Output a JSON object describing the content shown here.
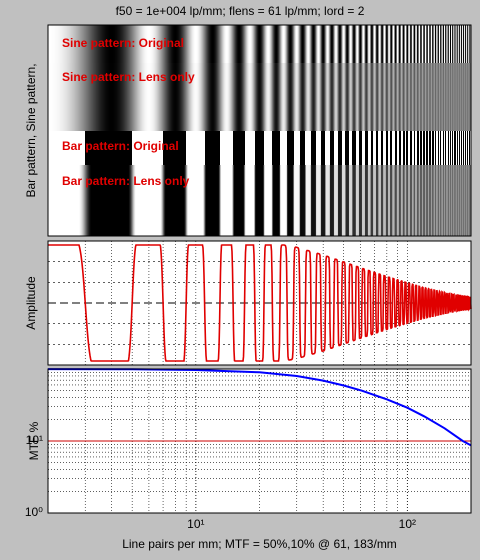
{
  "title": "f50 = 1e+004 lp/mm; flens = 61 lp/mm; lord = 2",
  "chart_data": [
    {
      "type": "pattern",
      "ylabel": "Bar pattern, Sine pattern,",
      "labels": [
        "Sine pattern: Original",
        "Sine pattern: Lens only",
        "Bar pattern: Original",
        "Bar pattern: Lens only"
      ]
    },
    {
      "type": "waveform",
      "ylabel": "Amplitude",
      "grid": true
    },
    {
      "type": "line",
      "ylabel": "MTF %",
      "xlabel": "Line pairs per mm;  MTF = 50%,10% @ 61, 183/mm",
      "log_x": true,
      "log_y": true,
      "grid": true,
      "xlim": [
        2,
        200
      ],
      "ylim": [
        1,
        100
      ],
      "xticks": [
        {
          "value": 10,
          "label": "10¹"
        },
        {
          "value": 100,
          "label": "10²"
        }
      ],
      "yticks": [
        {
          "value": 1,
          "label": "10⁰"
        },
        {
          "value": 10,
          "label": "10¹"
        }
      ],
      "hline": {
        "value": 10,
        "color": "#cc0000"
      },
      "series": [
        {
          "color": "#0000ff",
          "x": [
            2,
            5,
            10,
            20,
            30,
            40,
            50,
            61,
            80,
            100,
            120,
            150,
            183,
            200
          ],
          "values": [
            99.8,
            99,
            97,
            90,
            80,
            69,
            59,
            50,
            38,
            29,
            22,
            15,
            10,
            8.7
          ]
        }
      ]
    }
  ]
}
